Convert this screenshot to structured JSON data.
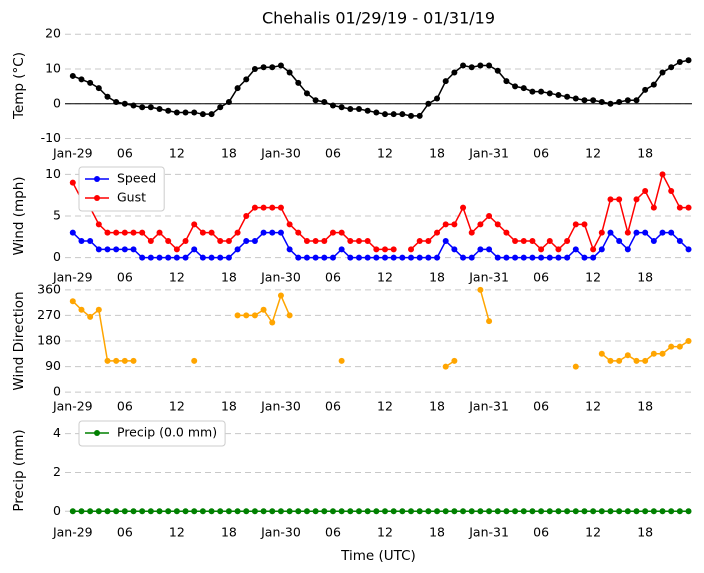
{
  "chart_data": [
    {
      "type": "line",
      "title": "Chehalis 01/29/19 - 01/31/19",
      "ylabel": "Temp (°C)",
      "x": [
        0,
        1,
        2,
        3,
        4,
        5,
        6,
        7,
        8,
        9,
        10,
        11,
        12,
        13,
        14,
        15,
        16,
        17,
        18,
        19,
        20,
        21,
        22,
        23,
        24,
        25,
        26,
        27,
        28,
        29,
        30,
        31,
        32,
        33,
        34,
        35,
        36,
        37,
        38,
        39,
        40,
        41,
        42,
        43,
        44,
        45,
        46,
        47,
        48,
        49,
        50,
        51,
        52,
        53,
        54,
        55,
        56,
        57,
        58,
        59,
        60,
        61,
        62,
        63,
        64,
        65,
        66,
        67,
        68,
        69,
        70,
        71
      ],
      "xlim": [
        -0.9,
        71.4
      ],
      "xticks": [
        {
          "value": 0,
          "label": "Jan-29"
        },
        {
          "value": 6,
          "label": "06"
        },
        {
          "value": 12,
          "label": "12"
        },
        {
          "value": 18,
          "label": "18"
        },
        {
          "value": 24,
          "label": "Jan-30"
        },
        {
          "value": 30,
          "label": "06"
        },
        {
          "value": 36,
          "label": "12"
        },
        {
          "value": 42,
          "label": "18"
        },
        {
          "value": 48,
          "label": "Jan-31"
        },
        {
          "value": 54,
          "label": "06"
        },
        {
          "value": 60,
          "label": "12"
        },
        {
          "value": 66,
          "label": "18"
        }
      ],
      "ylim": [
        -11,
        21.5
      ],
      "yticks": [
        -10,
        0,
        10,
        20
      ],
      "grid": true,
      "hline": 0,
      "series": [
        {
          "name": "Temp",
          "color": "#000000",
          "values": [
            8,
            7,
            6,
            4.5,
            2,
            0.5,
            0,
            -0.5,
            -1,
            -1,
            -1.5,
            -2,
            -2.5,
            -2.5,
            -2.5,
            -3,
            -3,
            -1,
            0.5,
            4.5,
            7,
            10,
            10.5,
            10.5,
            11,
            9,
            6,
            3,
            1,
            0.5,
            -0.5,
            -1,
            -1.5,
            -1.5,
            -2,
            -2.5,
            -3,
            -3,
            -3,
            -3.5,
            -3.5,
            0,
            1.5,
            6.5,
            9,
            11,
            10.5,
            11,
            11,
            9.5,
            6.5,
            5,
            4.5,
            3.5,
            3.5,
            3,
            2.5,
            2,
            1.5,
            1,
            1,
            0.5,
            0,
            0.5,
            1,
            1,
            4,
            5.5,
            9,
            10.5,
            12,
            12.5
          ]
        }
      ]
    },
    {
      "type": "line",
      "ylabel": "Wind (mph)",
      "x": [
        0,
        1,
        2,
        3,
        4,
        5,
        6,
        7,
        8,
        9,
        10,
        11,
        12,
        13,
        14,
        15,
        16,
        17,
        18,
        19,
        20,
        21,
        22,
        23,
        24,
        25,
        26,
        27,
        28,
        29,
        30,
        31,
        32,
        33,
        34,
        35,
        36,
        37,
        38,
        39,
        40,
        41,
        42,
        43,
        44,
        45,
        46,
        47,
        48,
        49,
        50,
        51,
        52,
        53,
        54,
        55,
        56,
        57,
        58,
        59,
        60,
        61,
        62,
        63,
        64,
        65,
        66,
        67,
        68,
        69,
        70,
        71
      ],
      "xlim": [
        -0.9,
        71.4
      ],
      "xticks": [
        {
          "value": 0,
          "label": "Jan-29"
        },
        {
          "value": 6,
          "label": "06"
        },
        {
          "value": 12,
          "label": "12"
        },
        {
          "value": 18,
          "label": "18"
        },
        {
          "value": 24,
          "label": "Jan-30"
        },
        {
          "value": 30,
          "label": "06"
        },
        {
          "value": 36,
          "label": "12"
        },
        {
          "value": 42,
          "label": "18"
        },
        {
          "value": 48,
          "label": "Jan-31"
        },
        {
          "value": 54,
          "label": "06"
        },
        {
          "value": 60,
          "label": "12"
        },
        {
          "value": 66,
          "label": "18"
        }
      ],
      "ylim": [
        -1,
        11
      ],
      "yticks": [
        0,
        5,
        10
      ],
      "grid": true,
      "legend": "upper left",
      "series": [
        {
          "name": "Speed",
          "color": "#0000ff",
          "values": [
            3,
            2,
            2,
            1,
            1,
            1,
            1,
            1,
            0,
            0,
            0,
            0,
            0,
            0,
            1,
            0,
            0,
            0,
            0,
            1,
            2,
            2,
            3,
            3,
            3,
            1,
            0,
            0,
            0,
            0,
            0,
            1,
            0,
            0,
            0,
            0,
            0,
            0,
            0,
            0,
            0,
            0,
            0,
            2,
            1,
            0,
            0,
            1,
            1,
            0,
            0,
            0,
            0,
            0,
            0,
            0,
            0,
            0,
            1,
            0,
            0,
            1,
            3,
            2,
            1,
            3,
            3,
            2,
            3,
            3,
            2,
            1
          ]
        },
        {
          "name": "Gust",
          "color": "#ff0000",
          "values": [
            9,
            7,
            6,
            4,
            3,
            3,
            3,
            3,
            3,
            2,
            3,
            2,
            1,
            2,
            4,
            3,
            3,
            2,
            2,
            3,
            5,
            6,
            6,
            6,
            6,
            4,
            3,
            2,
            2,
            2,
            3,
            3,
            2,
            2,
            2,
            1,
            1,
            1,
            null,
            1,
            2,
            2,
            3,
            4,
            4,
            6,
            3,
            4,
            5,
            4,
            3,
            2,
            2,
            2,
            1,
            2,
            1,
            2,
            4,
            4,
            1,
            3,
            7,
            7,
            3,
            7,
            8,
            6,
            10,
            8,
            6,
            6
          ]
        }
      ]
    },
    {
      "type": "line",
      "ylabel": "Wind Direction",
      "x": [
        0,
        1,
        2,
        3,
        4,
        5,
        6,
        7,
        8,
        9,
        10,
        11,
        12,
        13,
        14,
        15,
        16,
        17,
        18,
        19,
        20,
        21,
        22,
        23,
        24,
        25,
        26,
        27,
        28,
        29,
        30,
        31,
        32,
        33,
        34,
        35,
        36,
        37,
        38,
        39,
        40,
        41,
        42,
        43,
        44,
        45,
        46,
        47,
        48,
        49,
        50,
        51,
        52,
        53,
        54,
        55,
        56,
        57,
        58,
        59,
        60,
        61,
        62,
        63,
        64,
        65,
        66,
        67,
        68,
        69,
        70,
        71
      ],
      "xlim": [
        -0.9,
        71.4
      ],
      "xticks": [
        {
          "value": 0,
          "label": "Jan-29"
        },
        {
          "value": 6,
          "label": "06"
        },
        {
          "value": 12,
          "label": "12"
        },
        {
          "value": 18,
          "label": "18"
        },
        {
          "value": 24,
          "label": "Jan-30"
        },
        {
          "value": 30,
          "label": "06"
        },
        {
          "value": 36,
          "label": "12"
        },
        {
          "value": 42,
          "label": "18"
        },
        {
          "value": 48,
          "label": "Jan-31"
        },
        {
          "value": 54,
          "label": "06"
        },
        {
          "value": 60,
          "label": "12"
        },
        {
          "value": 66,
          "label": "18"
        }
      ],
      "ylim": [
        -10,
        370
      ],
      "yticks": [
        0,
        90,
        180,
        270,
        360
      ],
      "grid": true,
      "series": [
        {
          "name": "Direction",
          "color": "#ffa500",
          "values": [
            320,
            290,
            265,
            290,
            110,
            110,
            110,
            110,
            null,
            null,
            null,
            null,
            null,
            null,
            110,
            null,
            null,
            null,
            null,
            270,
            270,
            270,
            290,
            245,
            340,
            270,
            null,
            null,
            null,
            null,
            null,
            110,
            null,
            null,
            null,
            null,
            null,
            null,
            null,
            null,
            null,
            null,
            null,
            90,
            110,
            null,
            null,
            360,
            250,
            null,
            null,
            null,
            null,
            null,
            null,
            null,
            null,
            null,
            90,
            null,
            null,
            135,
            110,
            110,
            130,
            110,
            110,
            135,
            135,
            160,
            160,
            180
          ]
        }
      ]
    },
    {
      "type": "line",
      "ylabel": "Precip (mm)",
      "xlabel": "Time (UTC)",
      "x": [
        0,
        1,
        2,
        3,
        4,
        5,
        6,
        7,
        8,
        9,
        10,
        11,
        12,
        13,
        14,
        15,
        16,
        17,
        18,
        19,
        20,
        21,
        22,
        23,
        24,
        25,
        26,
        27,
        28,
        29,
        30,
        31,
        32,
        33,
        34,
        35,
        36,
        37,
        38,
        39,
        40,
        41,
        42,
        43,
        44,
        45,
        46,
        47,
        48,
        49,
        50,
        51,
        52,
        53,
        54,
        55,
        56,
        57,
        58,
        59,
        60,
        61,
        62,
        63,
        64,
        65,
        66,
        67,
        68,
        69,
        70,
        71
      ],
      "xlim": [
        -0.9,
        71.4
      ],
      "xticks": [
        {
          "value": 0,
          "label": "Jan-29"
        },
        {
          "value": 6,
          "label": "06"
        },
        {
          "value": 12,
          "label": "12"
        },
        {
          "value": 18,
          "label": "18"
        },
        {
          "value": 24,
          "label": "Jan-30"
        },
        {
          "value": 30,
          "label": "06"
        },
        {
          "value": 36,
          "label": "12"
        },
        {
          "value": 42,
          "label": "18"
        },
        {
          "value": 48,
          "label": "Jan-31"
        },
        {
          "value": 54,
          "label": "06"
        },
        {
          "value": 60,
          "label": "12"
        },
        {
          "value": 66,
          "label": "18"
        }
      ],
      "ylim": [
        -0.5,
        4.7
      ],
      "yticks": [
        0,
        2,
        4
      ],
      "grid": true,
      "legend": "upper left",
      "series": [
        {
          "name": "Precip (0.0 mm)",
          "color": "#008000",
          "values": [
            0,
            0,
            0,
            0,
            0,
            0,
            0,
            0,
            0,
            0,
            0,
            0,
            0,
            0,
            0,
            0,
            0,
            0,
            0,
            0,
            0,
            0,
            0,
            0,
            0,
            0,
            0,
            0,
            0,
            0,
            0,
            0,
            0,
            0,
            0,
            0,
            0,
            0,
            0,
            0,
            0,
            0,
            0,
            0,
            0,
            0,
            0,
            0,
            0,
            0,
            0,
            0,
            0,
            0,
            0,
            0,
            0,
            0,
            0,
            0,
            0,
            0,
            0,
            0,
            0,
            0,
            0,
            0,
            0,
            0,
            0,
            0
          ]
        }
      ]
    }
  ]
}
